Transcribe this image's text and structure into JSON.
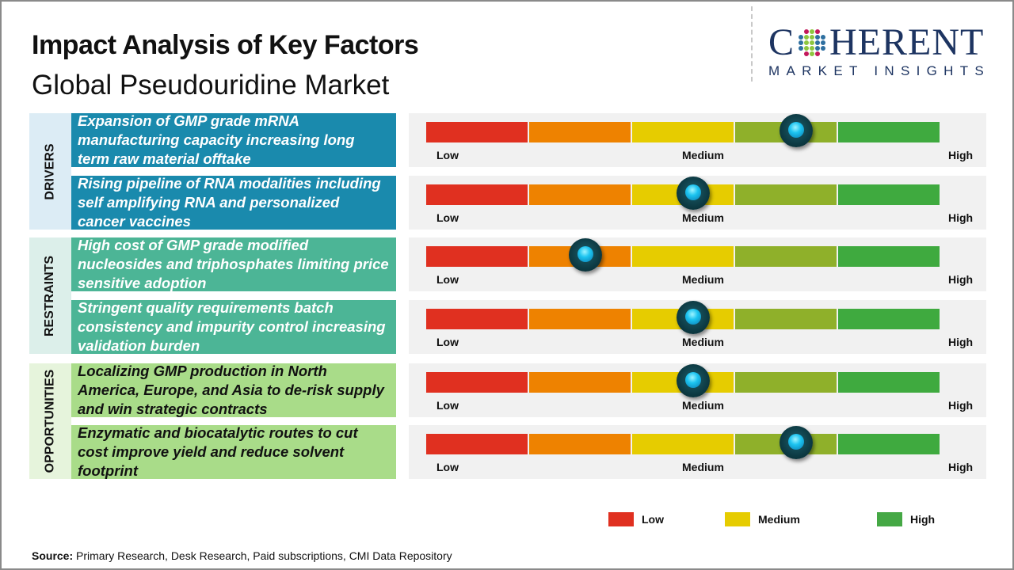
{
  "header": {
    "title": "Impact Analysis of Key Factors",
    "subtitle": "Global Pseudouridine Market"
  },
  "logo": {
    "main_before": "C",
    "main_after": "HERENT",
    "sub": "MARKET INSIGHTS"
  },
  "scale": {
    "low": "Low",
    "medium": "Medium",
    "high": "High",
    "segment_colors": [
      "#e03020",
      "#ee8200",
      "#e6cc00",
      "#8fb02a",
      "#3faa3f"
    ]
  },
  "categories": [
    {
      "label": "DRIVERS",
      "bg": "#dcecf5",
      "box": "#1a8aad",
      "text_color": "#ffffff",
      "factors": [
        {
          "text": "Expansion of GMP grade mRNA manufacturing capacity increasing long term raw material offtake",
          "impact_pct": 72
        },
        {
          "text": "Rising pipeline of RNA modalities including self amplifying RNA and personalized cancer vaccines",
          "impact_pct": 52
        }
      ]
    },
    {
      "label": "RESTRAINTS",
      "bg": "#dcefea",
      "box": "#4cb596",
      "text_color": "#ffffff",
      "factors": [
        {
          "text": "High cost of GMP grade modified nucleosides and triphosphates limiting price sensitive adoption",
          "impact_pct": 31
        },
        {
          "text": "Stringent quality requirements batch consistency and impurity control increasing validation burden",
          "impact_pct": 52
        }
      ]
    },
    {
      "label": "OPPORTUNITIES",
      "bg": "#e6f4dc",
      "box": "#a9dc89",
      "text_color": "#111111",
      "factors": [
        {
          "text": "Localizing GMP production in North America, Europe, and Asia to de-risk supply and win strategic contracts",
          "impact_pct": 52
        },
        {
          "text": "Enzymatic and biocatalytic routes to cut cost improve yield and reduce solvent footprint",
          "impact_pct": 72
        }
      ]
    }
  ],
  "legend": [
    {
      "label": "Low",
      "color": "#e03020"
    },
    {
      "label": "Medium",
      "color": "#e6cc00"
    },
    {
      "label": "High",
      "color": "#45a845"
    }
  ],
  "source": {
    "label": "Source:",
    "text": " Primary Research, Desk Research, Paid subscriptions, CMI Data Repository"
  }
}
